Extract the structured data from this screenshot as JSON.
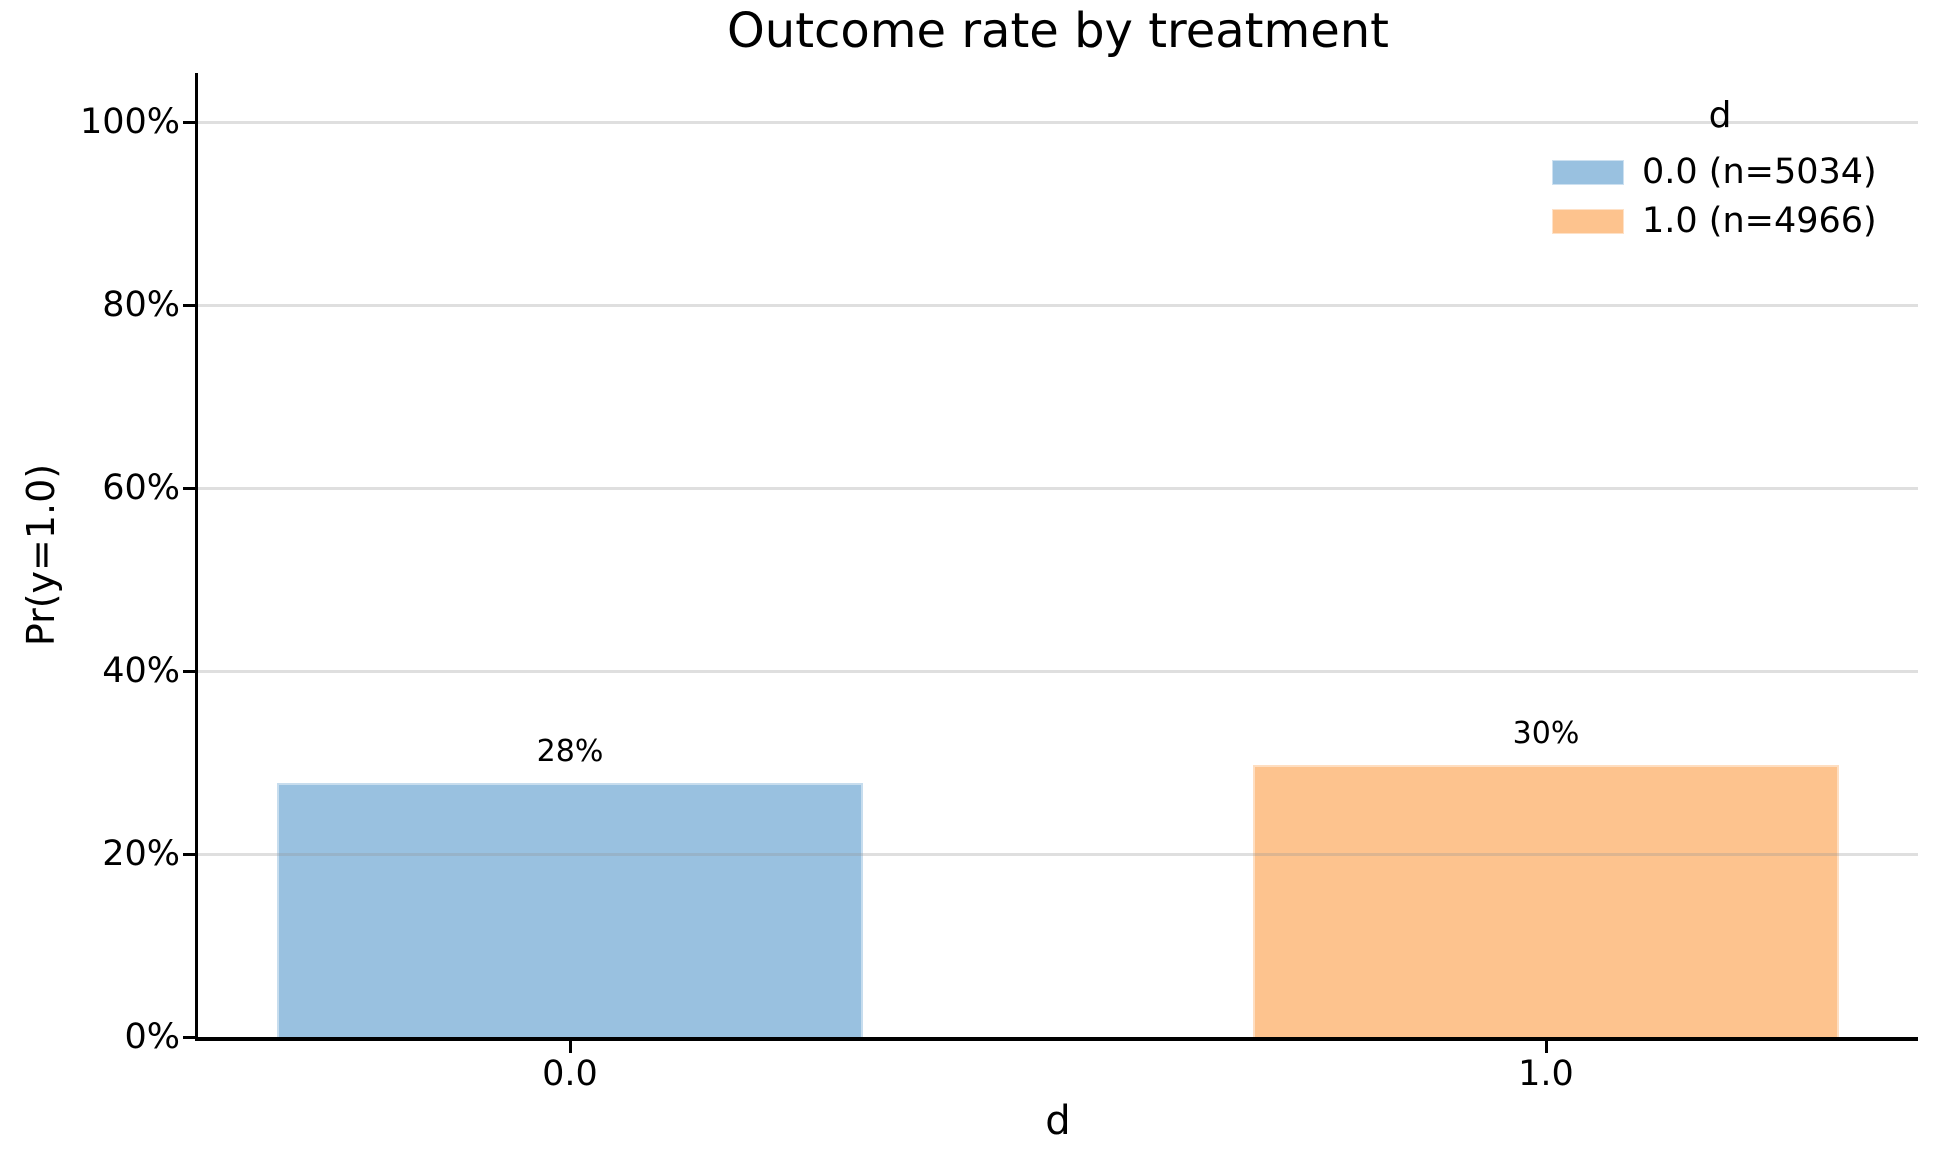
{
  "title": "Outcome rate by treatment",
  "chart_data": {
    "type": "bar",
    "title": "Outcome rate by treatment",
    "xlabel": "d",
    "ylabel": "Pr(y=1.0)",
    "ylim": [
      0,
      100
    ],
    "y_unit": "%",
    "grid": "horizontal",
    "y_tick_values": [
      0,
      20,
      40,
      60,
      80,
      100
    ],
    "y_tick_labels": [
      "0%",
      "20%",
      "40%",
      "60%",
      "80%",
      "100%"
    ],
    "categories": [
      "0.0",
      "1.0"
    ],
    "bars": [
      {
        "category": "0.0",
        "value_pct": 27.8,
        "data_label": "28%",
        "n": 5034,
        "color": "#99c1e0"
      },
      {
        "category": "1.0",
        "value_pct": 29.7,
        "data_label": "30%",
        "n": 4966,
        "color": "#fdc38e"
      }
    ],
    "legend": {
      "title": "d",
      "position": "upper right",
      "entries": [
        {
          "label": "0.0 (n=5034)",
          "color": "#99c1e0"
        },
        {
          "label": "1.0 (n=4966)",
          "color": "#fdc38e"
        }
      ]
    },
    "colors": {
      "background": "#ffffff",
      "spine": "#000000",
      "gridline": "#e0e0e0",
      "text": "#000000"
    }
  }
}
